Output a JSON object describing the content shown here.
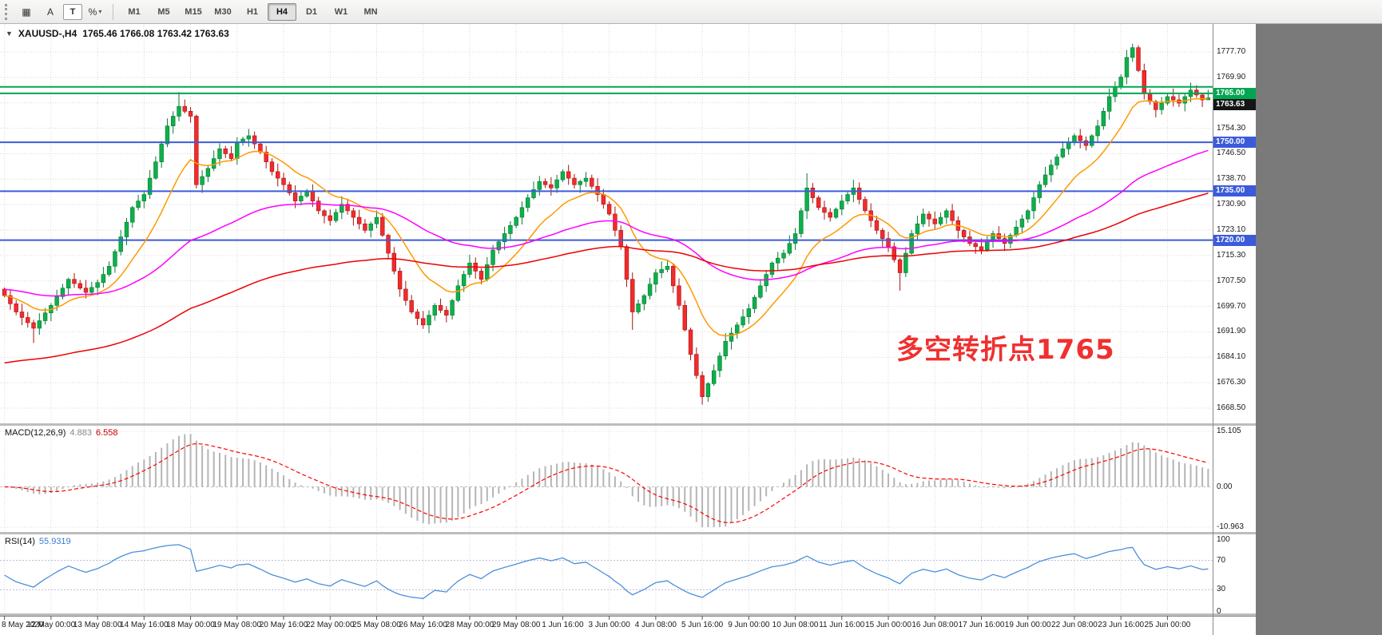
{
  "app": {
    "window_bg": "#7a7a7a"
  },
  "toolbar": {
    "tools": [
      {
        "name": "chart-grid-icon",
        "glyph": "▦"
      },
      {
        "name": "annotation-tool-icon",
        "glyph": "A"
      },
      {
        "name": "text-tool-icon",
        "glyph": "T"
      },
      {
        "name": "zoom-tool-icon",
        "glyph": "%"
      }
    ],
    "caret_glyph": "▾",
    "timeframes": [
      "M1",
      "M5",
      "M15",
      "M30",
      "H1",
      "H4",
      "D1",
      "W1",
      "MN"
    ],
    "active_timeframe": "H4"
  },
  "chart": {
    "symbol_title": "XAUUSD-,H4",
    "ohlc_readout": "1765.46 1766.08 1763.42 1763.63",
    "annotation": {
      "text": "多空转折点1765",
      "color": "#f03030"
    }
  },
  "macd_panel": {
    "title": "MACD(12,26,9)",
    "value_main": "4.883",
    "value_signal": "6.558"
  },
  "rsi_panel": {
    "title": "RSI(14)",
    "value": "55.9319"
  },
  "chart_data": {
    "type": "candlestick",
    "symbol": "XAUUSD-",
    "timeframe": "H4",
    "last_candle": {
      "open": 1765.46,
      "high": 1766.08,
      "low": 1763.42,
      "close": 1763.63
    },
    "price_range": [
      1668.5,
      1777.7
    ],
    "grid_step": 7.8,
    "first_open": 1705,
    "closes": [
      1703,
      1700.5,
      1698,
      1696.3,
      1694.7,
      1693,
      1695.3,
      1697.7,
      1700,
      1702.7,
      1705.3,
      1708,
      1706.7,
      1705.3,
      1704,
      1705.5,
      1707,
      1709.5,
      1712,
      1716.5,
      1721,
      1725.5,
      1730,
      1732,
      1734,
      1739,
      1744,
      1749.5,
      1755,
      1758,
      1761,
      1759.5,
      1758,
      1737,
      1739.5,
      1742,
      1745,
      1748,
      1746.5,
      1745,
      1750,
      1751,
      1752,
      1749.5,
      1747,
      1744,
      1741,
      1739,
      1737,
      1734.5,
      1732,
      1733.5,
      1735,
      1732,
      1729,
      1727.5,
      1726,
      1728.5,
      1731,
      1729,
      1727,
      1725,
      1723,
      1725,
      1727,
      1721.5,
      1716,
      1710.5,
      1705,
      1701.5,
      1698,
      1696,
      1694,
      1697,
      1700,
      1698.5,
      1697,
      1701.5,
      1706,
      1709.5,
      1713,
      1710.5,
      1708,
      1712.5,
      1717,
      1719.5,
      1722,
      1724.5,
      1727,
      1730,
      1733,
      1735.5,
      1738,
      1737,
      1736,
      1738.5,
      1741,
      1739,
      1737,
      1738,
      1739,
      1736.5,
      1734,
      1731,
      1728,
      1723,
      1718,
      1708,
      1698,
      1700.5,
      1703,
      1706.5,
      1710,
      1711,
      1712,
      1706,
      1700,
      1692.5,
      1685,
      1678.5,
      1672,
      1676,
      1680,
      1684.5,
      1689,
      1691.5,
      1694,
      1696.5,
      1699,
      1702.5,
      1706,
      1709.5,
      1713,
      1714.5,
      1716,
      1719,
      1722,
      1729,
      1736,
      1733,
      1730,
      1728.5,
      1727,
      1729.5,
      1732,
      1734,
      1736,
      1732.5,
      1729,
      1726,
      1723,
      1720.5,
      1718,
      1714,
      1710,
      1716,
      1722,
      1725,
      1728,
      1726.5,
      1725,
      1727,
      1729,
      1726,
      1723,
      1721,
      1719,
      1718,
      1717,
      1719.5,
      1722,
      1720.5,
      1719,
      1721.5,
      1724,
      1726.5,
      1729,
      1733,
      1737,
      1740,
      1743,
      1745.5,
      1748,
      1750,
      1752,
      1750.5,
      1749,
      1752,
      1755,
      1759.5,
      1764,
      1767,
      1770,
      1776,
      1779,
      1772,
      1765,
      1762.5,
      1760,
      1762,
      1764,
      1763,
      1762,
      1764,
      1766,
      1764.5,
      1763,
      1763.63
    ],
    "wick_overrides": {
      "5": {
        "low": 1688.5
      },
      "30": {
        "high": 1765.4
      },
      "108": {
        "low": 1692.5
      },
      "120": {
        "low": 1669.6
      },
      "138": {
        "high": 1740.5
      },
      "154": {
        "low": 1704.5
      },
      "194": {
        "high": 1780.2
      },
      "207": {
        "high": 1766.1,
        "low": 1763.4
      }
    },
    "up_color": "#0db04b",
    "up_edge": "#067a33",
    "down_color": "#f22b2b",
    "down_edge": "#a81212",
    "hlines": [
      {
        "price": 1767.0,
        "color": "#00a651",
        "width": 2
      },
      {
        "price": 1765.0,
        "color": "#00a651",
        "width": 2
      },
      {
        "price": 1750.0,
        "color": "#3b5bdb",
        "width": 2
      },
      {
        "price": 1735.0,
        "color": "#3b5bdb",
        "width": 2
      },
      {
        "price": 1720.0,
        "color": "#3b5bdb",
        "width": 2
      }
    ],
    "moving_averages": [
      {
        "period": 13,
        "color": "#ff9900",
        "start": null
      },
      {
        "period": 55,
        "color": "#ff00ff",
        "start": 1705
      },
      {
        "period": 120,
        "color": "#ee0000",
        "start": 1682
      }
    ],
    "y_tick_labels": [
      "1777.70",
      "1769.90",
      "1754.30",
      "1746.50",
      "1738.70",
      "1730.90",
      "1723.10",
      "1715.30",
      "1707.50",
      "1699.70",
      "1691.90",
      "1684.10",
      "1676.30",
      "1668.50"
    ],
    "price_badges": [
      {
        "text": "1765.00",
        "bg": "#00a651"
      },
      {
        "text": "1763.63",
        "bg": "#151515"
      },
      {
        "text": "1750.00",
        "bg": "#3b5bdb"
      },
      {
        "text": "1735.00",
        "bg": "#3b5bdb"
      },
      {
        "text": "1720.00",
        "bg": "#3b5bdb"
      }
    ],
    "x_tick_labels": [
      "8 May 2020",
      "12 May 00:00",
      "13 May 08:00",
      "14 May 16:00",
      "18 May 00:00",
      "19 May 08:00",
      "20 May 16:00",
      "22 May 00:00",
      "25 May 08:00",
      "26 May 16:00",
      "28 May 00:00",
      "29 May 08:00",
      "1 Jun 16:00",
      "3 Jun 00:00",
      "4 Jun 08:00",
      "5 Jun 16:00",
      "9 Jun 00:00",
      "10 Jun 08:00",
      "11 Jun 16:00",
      "15 Jun 00:00",
      "16 Jun 08:00",
      "17 Jun 16:00",
      "19 Jun 00:00",
      "22 Jun 08:00",
      "23 Jun 16:00",
      "25 Jun 00:00"
    ],
    "candles_per_tick": 8,
    "macd": {
      "fast": 12,
      "slow": 26,
      "signal": 9,
      "y_max": 15.105,
      "y_min": -10.963,
      "axis_labels": [
        "15.105",
        "0.00",
        "-10.963"
      ],
      "hist_color": "#b5b5b5",
      "signal_color": "#ff0000"
    },
    "rsi": {
      "period": 14,
      "levels": [
        70,
        30
      ],
      "axis_labels": [
        "100",
        "70",
        "30",
        "0"
      ],
      "color": "#4a90d9"
    }
  }
}
